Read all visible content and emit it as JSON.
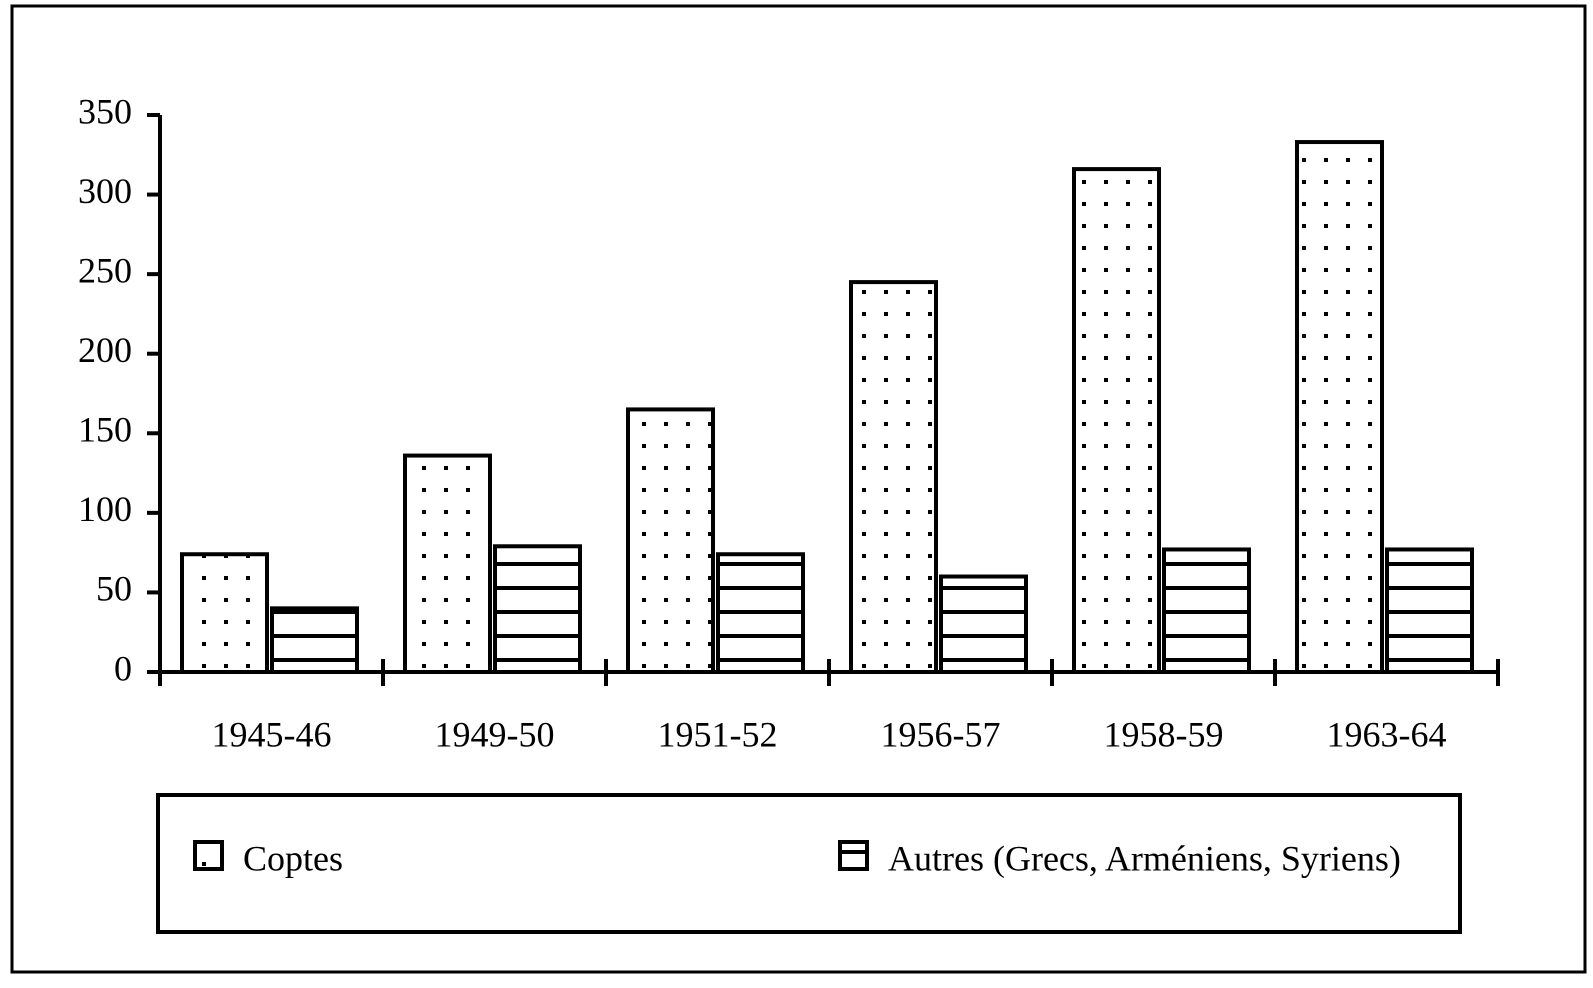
{
  "chart_data": {
    "type": "bar",
    "categories": [
      "1945-46",
      "1949-50",
      "1951-52",
      "1956-57",
      "1958-59",
      "1963-64"
    ],
    "series": [
      {
        "name": "Coptes",
        "color": "#000000",
        "pattern": "dots",
        "values": [
          74,
          136,
          165,
          245,
          316,
          333
        ]
      },
      {
        "name": "Autres (Grecs, Arméniens, Syriens)",
        "color": "#000000",
        "pattern": "stripes",
        "values": [
          40,
          79,
          74,
          60,
          77,
          77
        ]
      }
    ],
    "ylim": [
      0,
      350
    ],
    "yticks": [
      0,
      50,
      100,
      150,
      200,
      250,
      300,
      350
    ],
    "legend": "bottom"
  }
}
